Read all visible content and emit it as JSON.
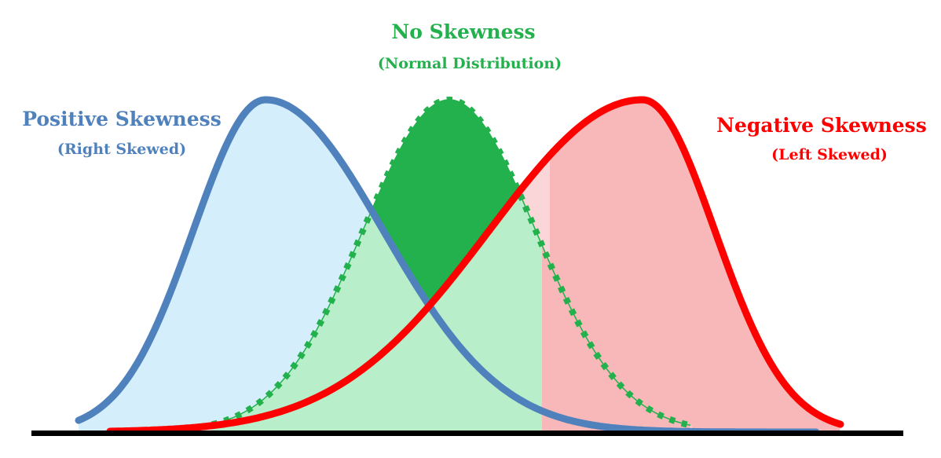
{
  "colors": {
    "positive": "#4f81bd",
    "positive_fill": "#d4effb",
    "normal": "#22b14c",
    "normal_fill_dark": "#22b14c",
    "normal_fill_light": "#b8eec9",
    "negative": "#ff0000",
    "negative_fill": "#f8b7b8",
    "negative_fill_light": "#fbd6d8",
    "baseline": "#000000",
    "background": "#ffffff"
  },
  "labels": {
    "normal": {
      "title": "No Skewness",
      "subtitle": "(Normal Distribution)"
    },
    "positive": {
      "title": "Positive Skewness",
      "subtitle": "(Right Skewed)"
    },
    "negative": {
      "title": "Negative Skewness",
      "subtitle": "(Left Skewed)"
    }
  },
  "chart_data": {
    "type": "area",
    "series": [
      {
        "name": "Positive Skewness",
        "shape": "right-skewed",
        "peak_position": "left"
      },
      {
        "name": "No Skewness",
        "shape": "normal",
        "peak_position": "center",
        "line_style": "dotted"
      },
      {
        "name": "Negative Skewness",
        "shape": "left-skewed",
        "peak_position": "right"
      }
    ],
    "axes": "none",
    "grid": false
  }
}
